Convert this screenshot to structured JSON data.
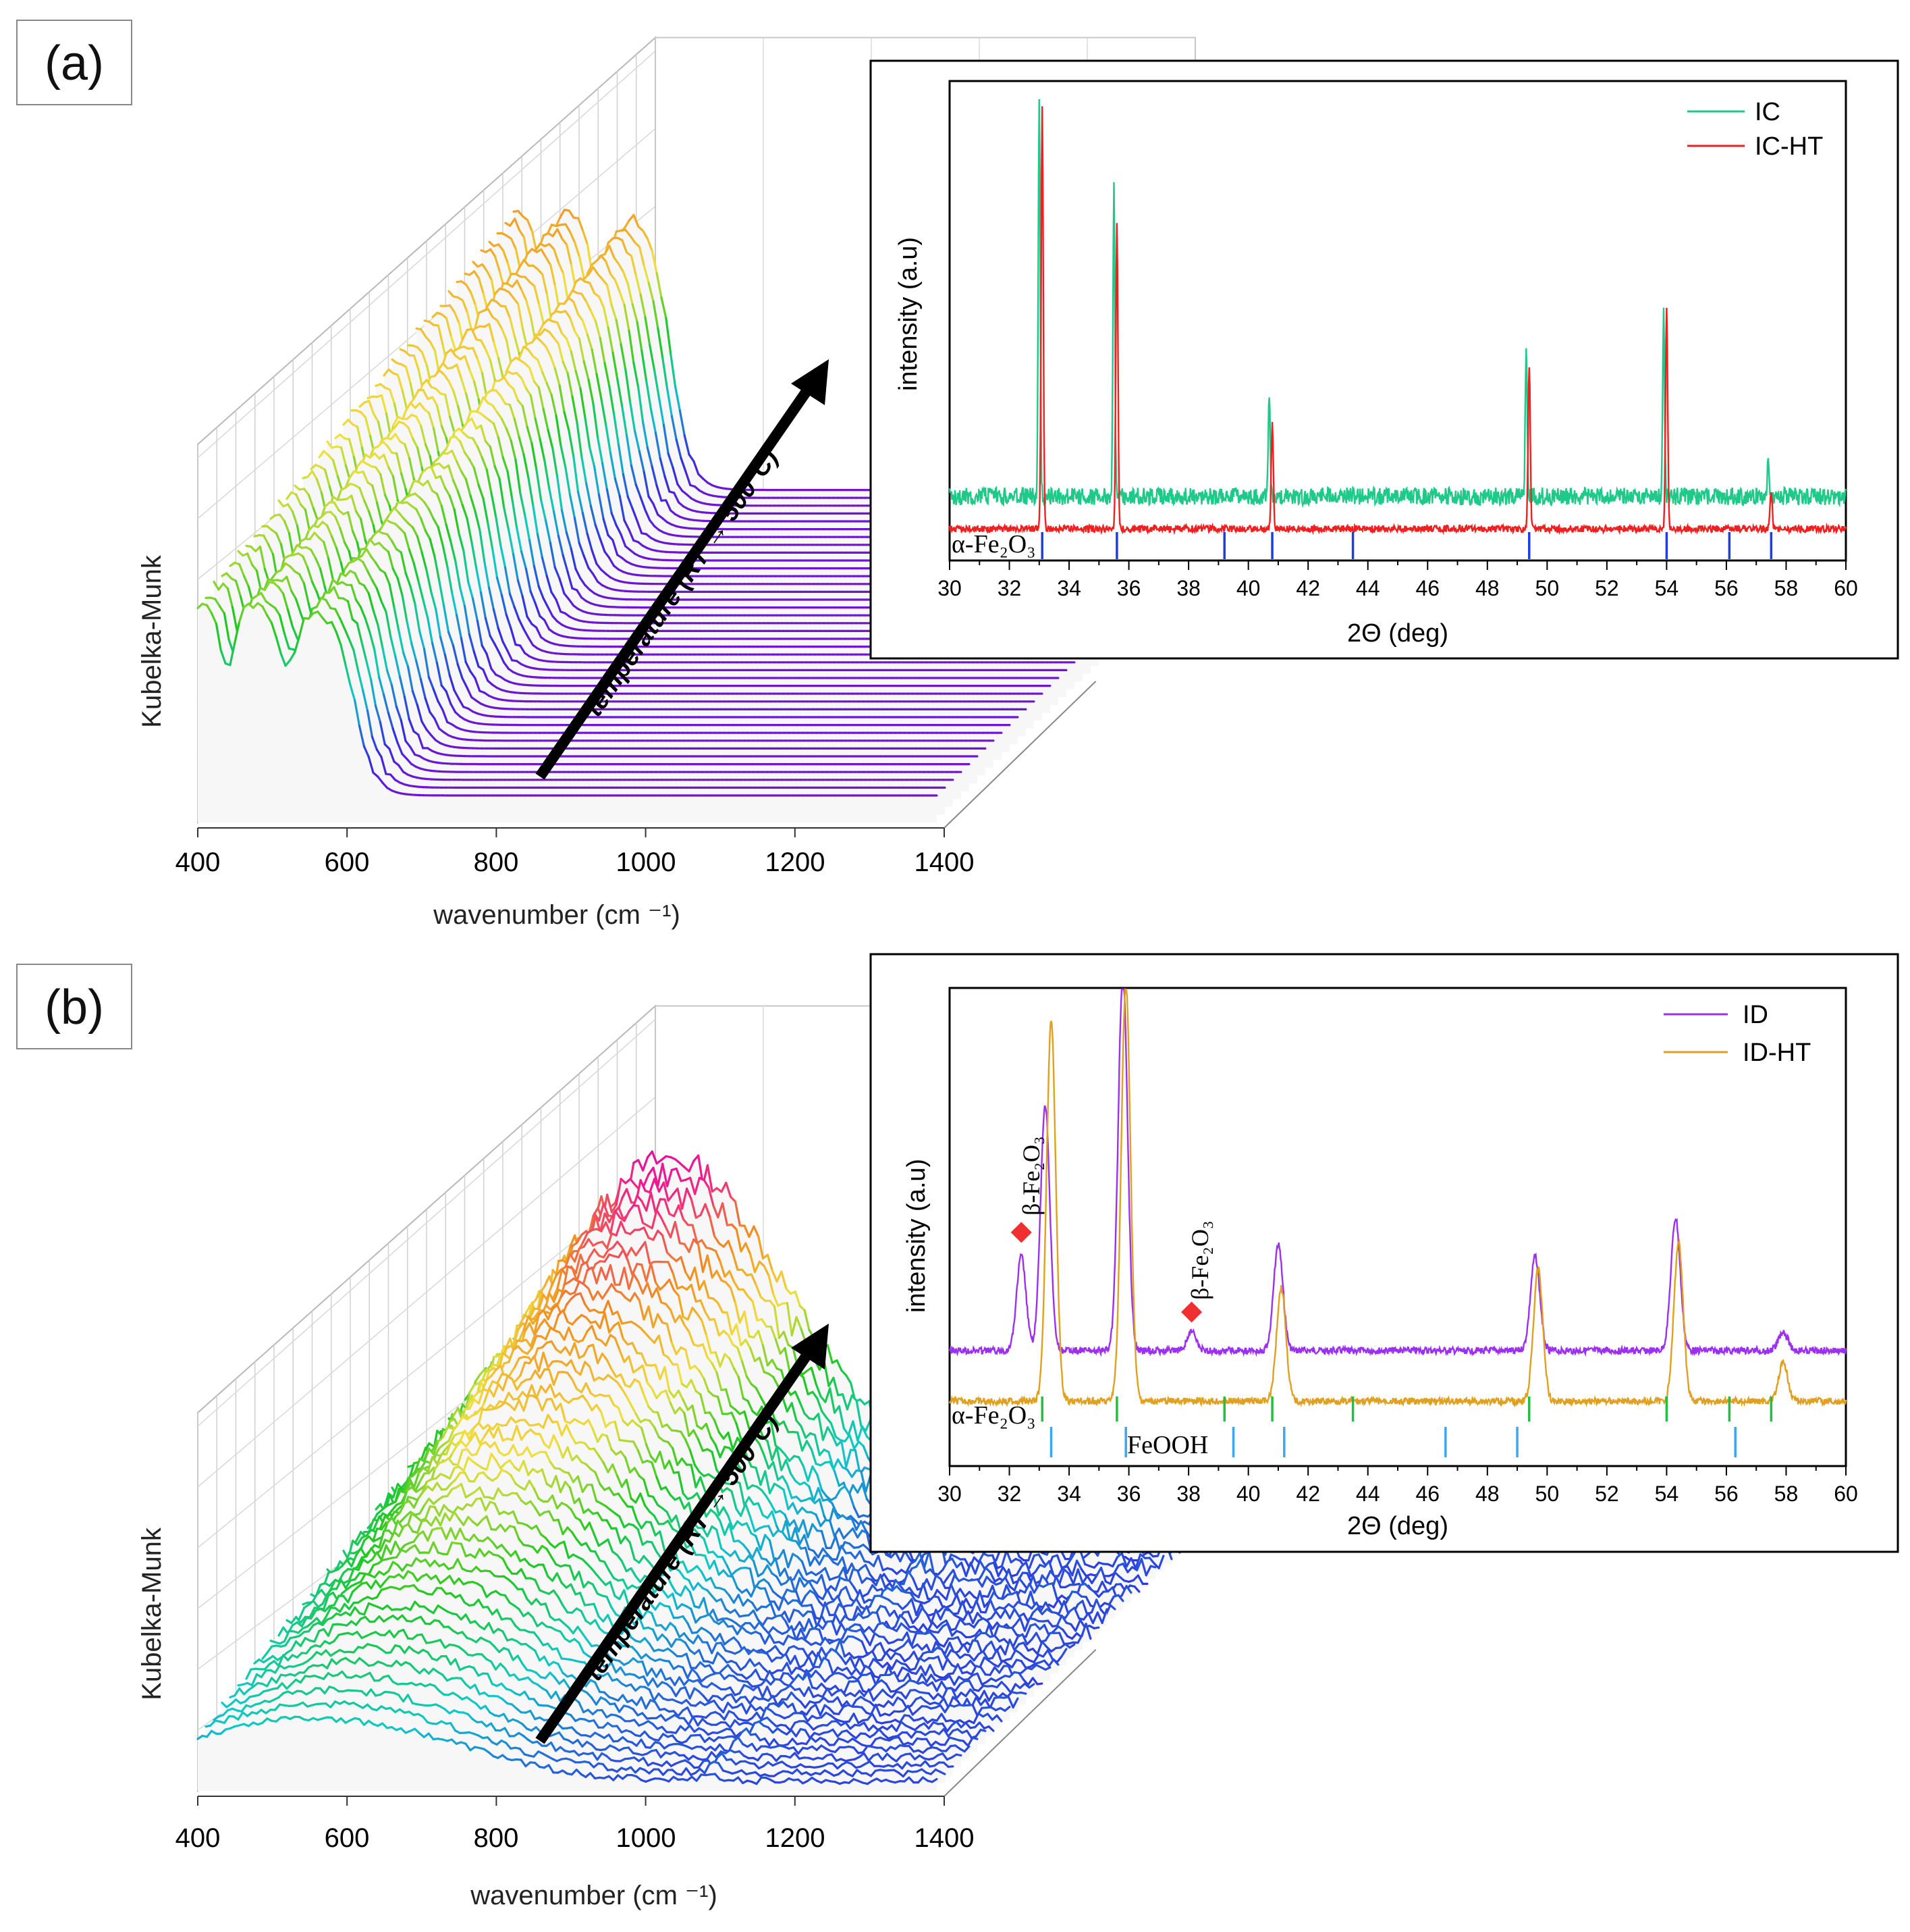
{
  "panels": [
    {
      "label": "(a)",
      "waterfall": {
        "xlabel": "wavenumber (cm ⁻¹)",
        "ylabel": "Kubelka-Munk",
        "x_ticks": [
          "400",
          "600",
          "800",
          "1000",
          "1200",
          "1400"
        ],
        "arrow_label": "temperature (RT → 500°C)"
      },
      "inset": {
        "xlabel": "2Θ (deg)",
        "ylabel": "intensity (a.u)",
        "x_ticks": [
          "30",
          "32",
          "34",
          "36",
          "38",
          "40",
          "42",
          "44",
          "46",
          "48",
          "50",
          "52",
          "54",
          "56",
          "58",
          "60"
        ],
        "legend": [
          "IC",
          "IC-HT"
        ],
        "phase_labels": [
          "α-Fe₂O₃"
        ]
      }
    },
    {
      "label": "(b)",
      "waterfall": {
        "xlabel": "wavenumber (cm ⁻¹)",
        "ylabel": "Kubelka-Munk",
        "x_ticks": [
          "400",
          "600",
          "800",
          "1000",
          "1200",
          "1400"
        ],
        "arrow_label": "temperature (RT → 500°C)"
      },
      "inset": {
        "xlabel": "2Θ (deg)",
        "ylabel": "intensity (a.u)",
        "x_ticks": [
          "30",
          "32",
          "34",
          "36",
          "38",
          "40",
          "42",
          "44",
          "46",
          "48",
          "50",
          "52",
          "54",
          "56",
          "58",
          "60"
        ],
        "legend": [
          "ID",
          "ID-HT"
        ],
        "phase_labels": [
          "α-Fe₂O₃",
          "FeOOH"
        ],
        "annotations": [
          "β-Fe₂O₃",
          "β-Fe₂O₃"
        ]
      }
    }
  ],
  "chart_data": [
    {
      "type": "line",
      "panel": "(a) waterfall",
      "xlabel": "wavenumber (cm ⁻¹)",
      "ylabel": "Kubelka-Munk",
      "xlim": [
        400,
        1400
      ],
      "n_spectra": 40,
      "colormap": [
        "#a000c8",
        "#3030e0",
        "#10c8c8",
        "#20c820",
        "#f0e040",
        "#f09020",
        "#f01890"
      ],
      "arrow_label": "temperature (RT → 500°C)"
    },
    {
      "type": "line",
      "panel": "(a) inset",
      "xlabel": "2Θ (deg)",
      "ylabel": "intensity (a.u)",
      "xlim": [
        30,
        60
      ],
      "series": [
        {
          "name": "IC",
          "color": "#1fc98a",
          "peaks": [
            [
              33.0,
              1.0
            ],
            [
              35.5,
              0.8
            ],
            [
              40.7,
              0.26
            ],
            [
              49.3,
              0.39
            ],
            [
              53.9,
              0.47
            ],
            [
              57.4,
              0.09
            ]
          ]
        },
        {
          "name": "IC-HT",
          "color": "#ee2020",
          "peaks": [
            [
              33.1,
              1.08
            ],
            [
              35.6,
              0.78
            ],
            [
              40.8,
              0.27
            ],
            [
              49.4,
              0.42
            ],
            [
              54.0,
              0.56
            ],
            [
              57.5,
              0.1
            ]
          ]
        }
      ],
      "reference_lines": [
        {
          "phase": "α-Fe₂O₃",
          "color": "#1e3fe0",
          "positions": [
            33.1,
            35.6,
            39.2,
            40.8,
            43.5,
            49.4,
            54.0,
            56.1,
            57.5
          ]
        }
      ]
    },
    {
      "type": "line",
      "panel": "(b) waterfall",
      "xlabel": "wavenumber (cm ⁻¹)",
      "ylabel": "Kubelka-Munk",
      "xlim": [
        400,
        1400
      ],
      "n_spectra": 40,
      "colormap": [
        "#3030e0",
        "#10c8c8",
        "#20c820",
        "#f0e040",
        "#f09020",
        "#f01890",
        "#a000c8"
      ],
      "arrow_label": "temperature (RT → 500°C)"
    },
    {
      "type": "line",
      "panel": "(b) inset",
      "xlabel": "2Θ (deg)",
      "ylabel": "intensity (a.u)",
      "xlim": [
        30,
        60
      ],
      "series": [
        {
          "name": "ID",
          "color": "#9b30f0",
          "peaks": [
            [
              32.4,
              0.25
            ],
            [
              33.2,
              0.65
            ],
            [
              35.8,
              1.0
            ],
            [
              38.1,
              0.05
            ],
            [
              41.0,
              0.28
            ],
            [
              49.6,
              0.25
            ],
            [
              54.3,
              0.35
            ],
            [
              57.9,
              0.05
            ]
          ]
        },
        {
          "name": "ID-HT",
          "color": "#e0a020",
          "peaks": [
            [
              33.4,
              1.0
            ],
            [
              35.9,
              1.1
            ],
            [
              41.1,
              0.3
            ],
            [
              49.7,
              0.35
            ],
            [
              54.4,
              0.42
            ],
            [
              57.9,
              0.1
            ]
          ]
        }
      ],
      "reference_lines": [
        {
          "phase": "α-Fe₂O₃",
          "color": "#22c040",
          "positions": [
            33.1,
            35.6,
            39.2,
            40.8,
            43.5,
            49.4,
            54.0,
            56.1,
            57.5
          ]
        },
        {
          "phase": "FeOOH",
          "color": "#3aa8f0",
          "positions": [
            33.4,
            35.9,
            39.5,
            41.2,
            46.6,
            49.0,
            56.3
          ]
        }
      ],
      "annotations": [
        {
          "text": "β-Fe₂O₃",
          "x": 32.4,
          "marker": "diamond",
          "color": "#f03030"
        },
        {
          "text": "β-Fe₂O₃",
          "x": 38.1,
          "marker": "diamond",
          "color": "#f03030"
        }
      ]
    }
  ]
}
